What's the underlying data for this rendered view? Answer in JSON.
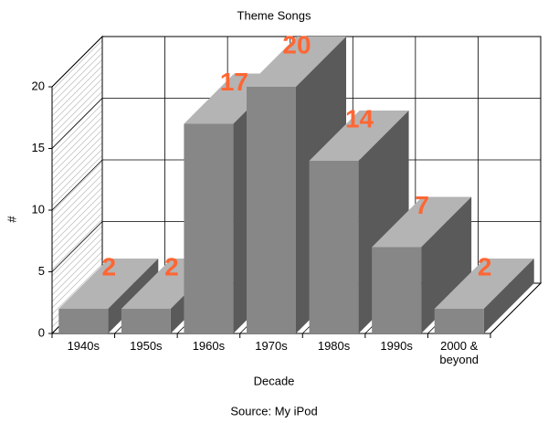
{
  "chart_data": {
    "type": "bar",
    "title": "Theme Songs",
    "x_label": "Decade",
    "y_label": "#",
    "source": "Source: My iPod",
    "categories": [
      "1940s",
      "1950s",
      "1960s",
      "1970s",
      "1980s",
      "1990s",
      "2000 & beyond"
    ],
    "values": [
      2,
      2,
      17,
      20,
      14,
      7,
      2
    ],
    "color": "#878787",
    "label_color": "#ff6633",
    "ylim": [
      0,
      20
    ],
    "yticks": [
      0,
      5,
      10,
      15,
      20
    ],
    "grid": true
  }
}
